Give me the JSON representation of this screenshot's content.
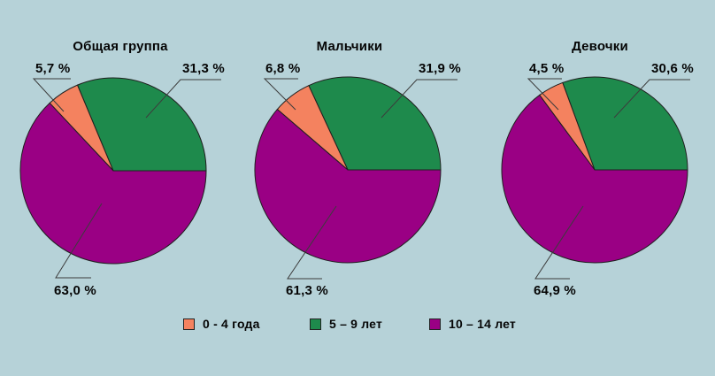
{
  "figure": {
    "background": "#b6d2d8",
    "slice_outline": "#1f1f1f"
  },
  "chart_data": [
    {
      "type": "pie",
      "title": "Общая группа",
      "categories": [
        "0 - 4 года",
        "5 – 9 лет",
        "10 – 14 лет"
      ],
      "values": [
        5.7,
        31.3,
        63.0
      ],
      "value_labels": [
        "5,7 %",
        "31,3 %",
        "63,0 %"
      ],
      "colors": [
        "#f4825f",
        "#1e8a4c",
        "#9a0084"
      ],
      "start_angle_deg": 0,
      "direction": "ccw",
      "draw_order": [
        1,
        0,
        2
      ]
    },
    {
      "type": "pie",
      "title": "Мальчики",
      "categories": [
        "0 - 4 года",
        "5 – 9 лет",
        "10 – 14 лет"
      ],
      "values": [
        6.8,
        31.9,
        61.3
      ],
      "value_labels": [
        "6,8 %",
        "31,9 %",
        "61,3 %"
      ],
      "colors": [
        "#f4825f",
        "#1e8a4c",
        "#9a0084"
      ],
      "start_angle_deg": 0,
      "direction": "ccw",
      "draw_order": [
        1,
        0,
        2
      ]
    },
    {
      "type": "pie",
      "title": "Девочки",
      "categories": [
        "0 - 4 года",
        "5 – 9 лет",
        "10 – 14 лет"
      ],
      "values": [
        4.5,
        30.6,
        64.9
      ],
      "value_labels": [
        "4,5 %",
        "30,6 %",
        "64,9 %"
      ],
      "colors": [
        "#f4825f",
        "#1e8a4c",
        "#9a0084"
      ],
      "start_angle_deg": 0,
      "direction": "ccw",
      "draw_order": [
        1,
        0,
        2
      ]
    }
  ],
  "legend": {
    "items": [
      {
        "label": "0 - 4 года",
        "color": "#f4825f"
      },
      {
        "label": "5 – 9 лет",
        "color": "#1e8a4c"
      },
      {
        "label": "10 – 14 лет",
        "color": "#9a0084"
      }
    ]
  }
}
